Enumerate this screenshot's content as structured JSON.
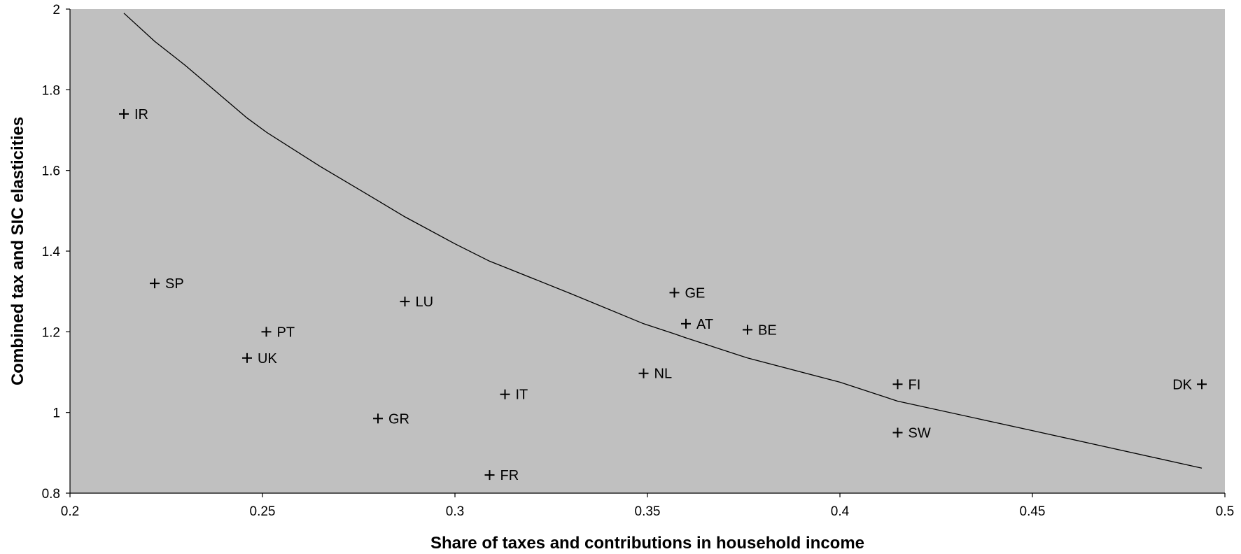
{
  "chart_data": {
    "type": "scatter",
    "title": "",
    "xlabel": "Share of taxes and contributions in household income",
    "ylabel": "Combined tax and SIC elasticities",
    "xlim": [
      0.2,
      0.5
    ],
    "ylim": [
      0.8,
      2
    ],
    "x_ticks": [
      "0.2",
      "0.25",
      "0.3",
      "0.35",
      "0.4",
      "0.45",
      "0.5"
    ],
    "y_ticks": [
      "0.8",
      "1",
      "1.2",
      "1.4",
      "1.6",
      "1.8",
      "2"
    ],
    "grid": false,
    "plot_background": "#c0c0c0",
    "points": [
      {
        "label": "IR",
        "x": 0.214,
        "y": 1.74
      },
      {
        "label": "SP",
        "x": 0.222,
        "y": 1.32
      },
      {
        "label": "PT",
        "x": 0.251,
        "y": 1.2
      },
      {
        "label": "UK",
        "x": 0.246,
        "y": 1.135
      },
      {
        "label": "LU",
        "x": 0.287,
        "y": 1.275
      },
      {
        "label": "GR",
        "x": 0.28,
        "y": 0.985
      },
      {
        "label": "IT",
        "x": 0.313,
        "y": 1.045
      },
      {
        "label": "FR",
        "x": 0.309,
        "y": 0.845
      },
      {
        "label": "NL",
        "x": 0.349,
        "y": 1.097
      },
      {
        "label": "GE",
        "x": 0.357,
        "y": 1.297
      },
      {
        "label": "AT",
        "x": 0.36,
        "y": 1.22
      },
      {
        "label": "BE",
        "x": 0.376,
        "y": 1.205
      },
      {
        "label": "FI",
        "x": 0.415,
        "y": 1.07
      },
      {
        "label": "SW",
        "x": 0.415,
        "y": 0.95
      },
      {
        "label": "DK",
        "x": 0.494,
        "y": 1.07
      }
    ],
    "curve": {
      "x": [
        0.214,
        0.222,
        0.23,
        0.246,
        0.251,
        0.265,
        0.28,
        0.287,
        0.3,
        0.309,
        0.313,
        0.33,
        0.349,
        0.357,
        0.36,
        0.376,
        0.4,
        0.415,
        0.45,
        0.494
      ],
      "y": [
        1.99,
        1.92,
        1.86,
        1.73,
        1.695,
        1.61,
        1.525,
        1.485,
        1.418,
        1.375,
        1.36,
        1.295,
        1.22,
        1.195,
        1.185,
        1.135,
        1.075,
        1.028,
        0.955,
        0.862
      ]
    }
  }
}
